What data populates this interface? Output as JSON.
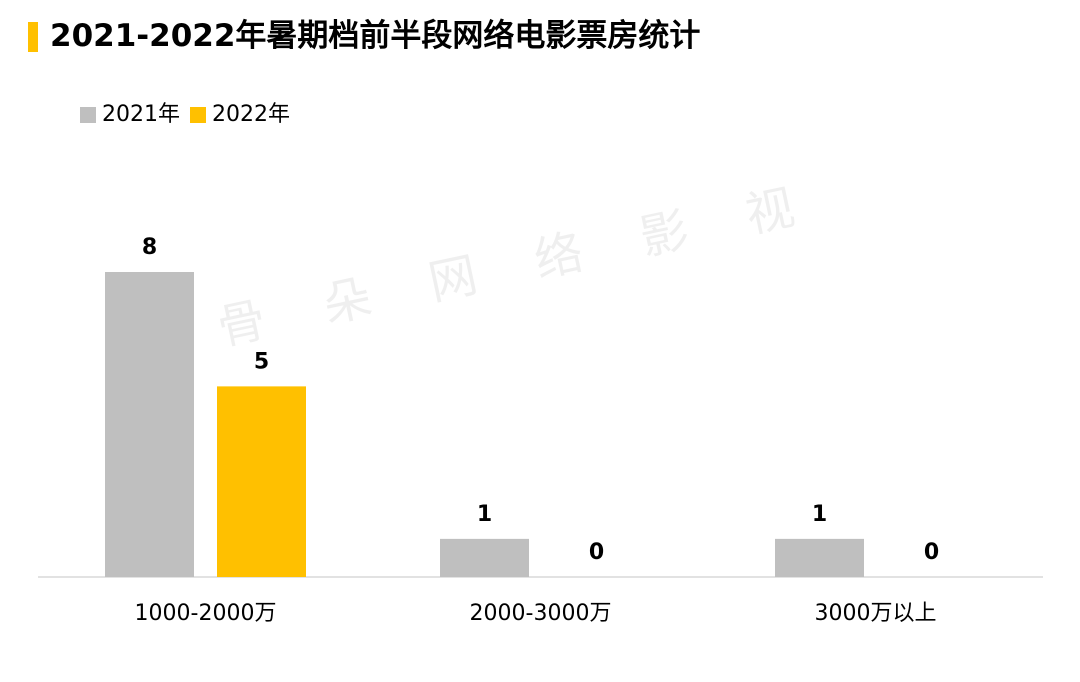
{
  "title": "2021-2022年暑期档前半段网络电影票房统计",
  "watermark": "骨朵网络影视",
  "colors": {
    "accent": "#ffc000",
    "gray": "#bfbfbf",
    "axis": "#d9d9d9"
  },
  "chart_data": {
    "type": "bar",
    "categories": [
      "1000-2000万",
      "2000-3000万",
      "3000万以上"
    ],
    "series": [
      {
        "name": "2021年",
        "values": [
          8,
          1,
          1
        ],
        "color": "#bfbfbf"
      },
      {
        "name": "2022年",
        "values": [
          5,
          0,
          0
        ],
        "color": "#ffc000"
      }
    ],
    "ylim": [
      0,
      8
    ],
    "grid": false,
    "legend": "top-left",
    "data_labels": true
  }
}
